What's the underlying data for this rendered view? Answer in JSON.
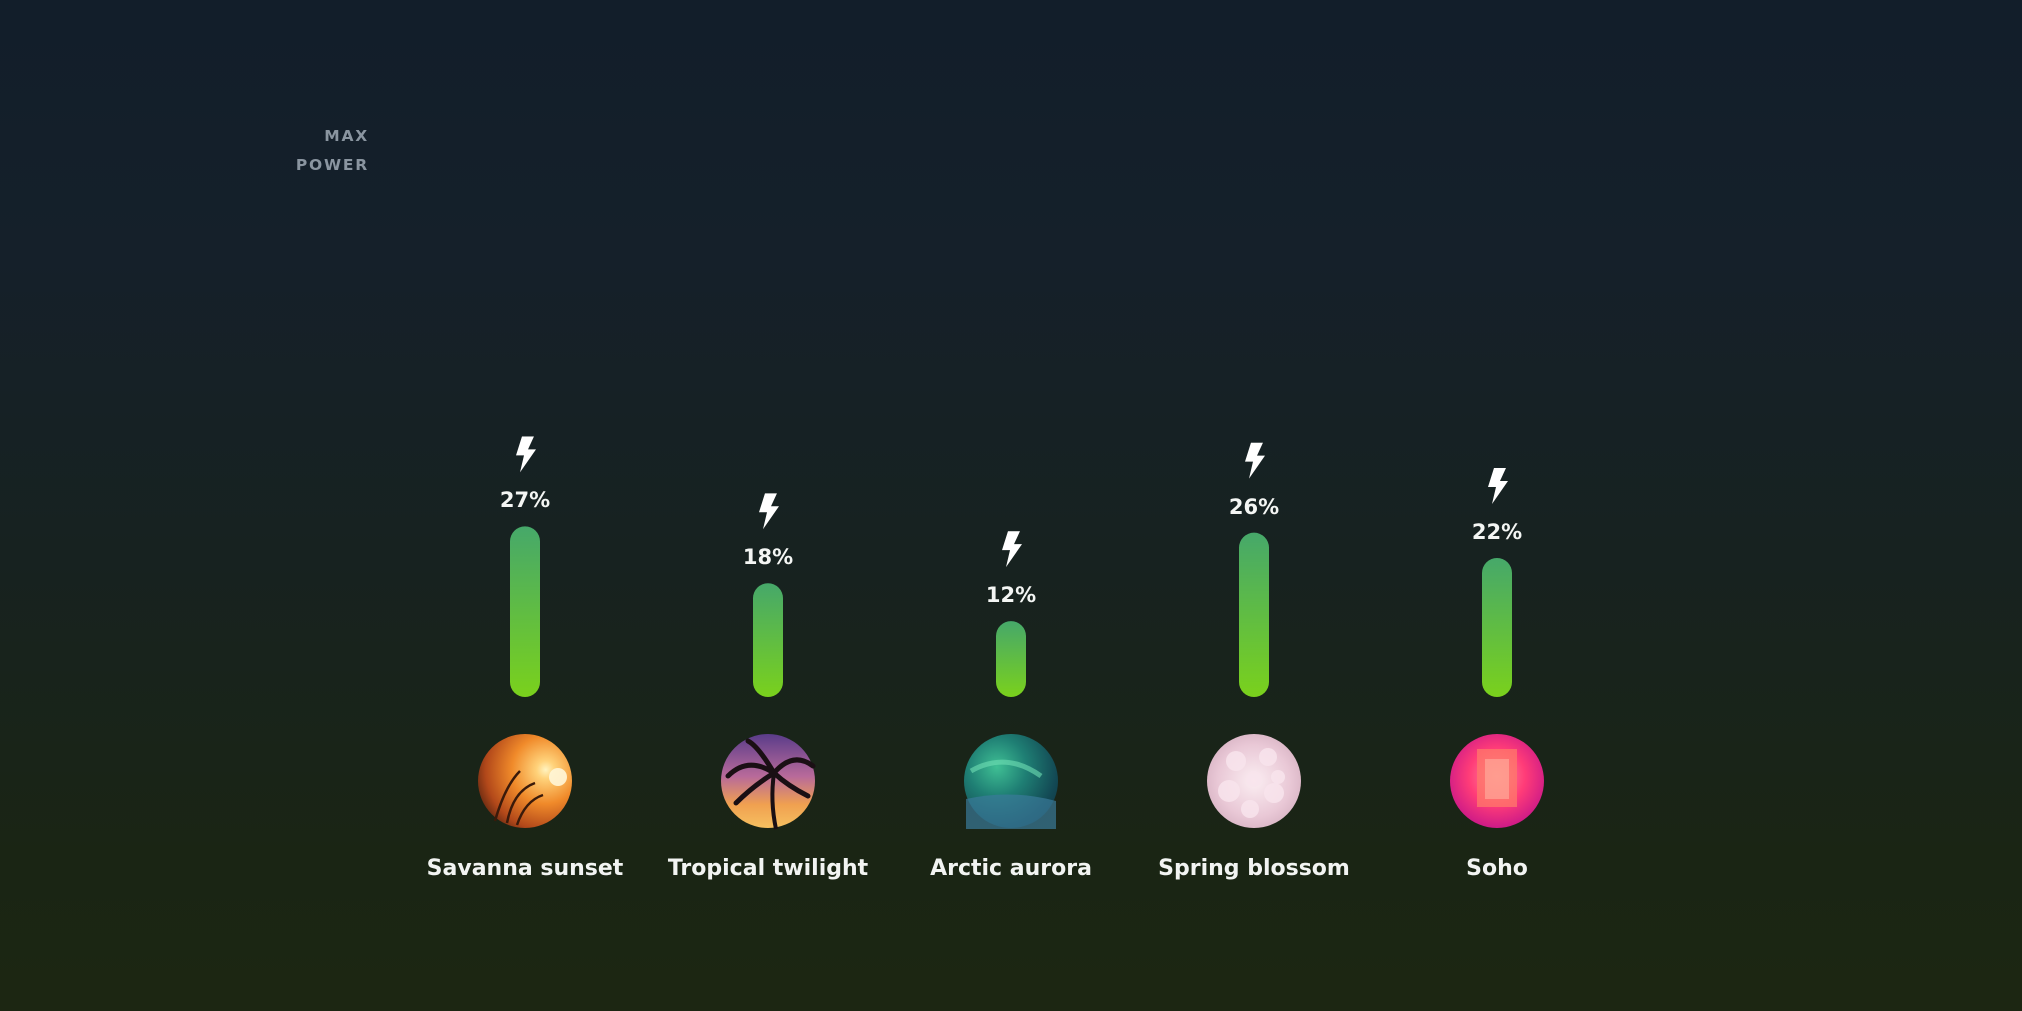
{
  "max_label": {
    "line1": "MAX",
    "line2": "POWER"
  },
  "chart_data": {
    "type": "bar",
    "title": "",
    "xlabel": "",
    "ylabel": "",
    "ylim": [
      0,
      100
    ],
    "max_line_label": "MAX POWER",
    "grid": true,
    "icon": "lightning-bolt-icon",
    "categories": [
      "Savanna sunset",
      "Tropical twilight",
      "Arctic aurora",
      "Spring blossom",
      "Soho"
    ],
    "values": [
      27,
      18,
      12,
      26,
      22
    ],
    "value_labels": [
      "27%",
      "18%",
      "12%",
      "26%",
      "22%"
    ],
    "thumbnails": [
      "savanna-sunset-thumbnail",
      "tropical-twilight-thumbnail",
      "arctic-aurora-thumbnail",
      "spring-blossom-thumbnail",
      "soho-thumbnail"
    ]
  },
  "colors": {
    "bar_top": "#46a86a",
    "bar_bottom": "#7ad11c",
    "grid_line": "#3b4a4d",
    "max_line": "#9aa3aa",
    "label": "#f2f4f2"
  }
}
